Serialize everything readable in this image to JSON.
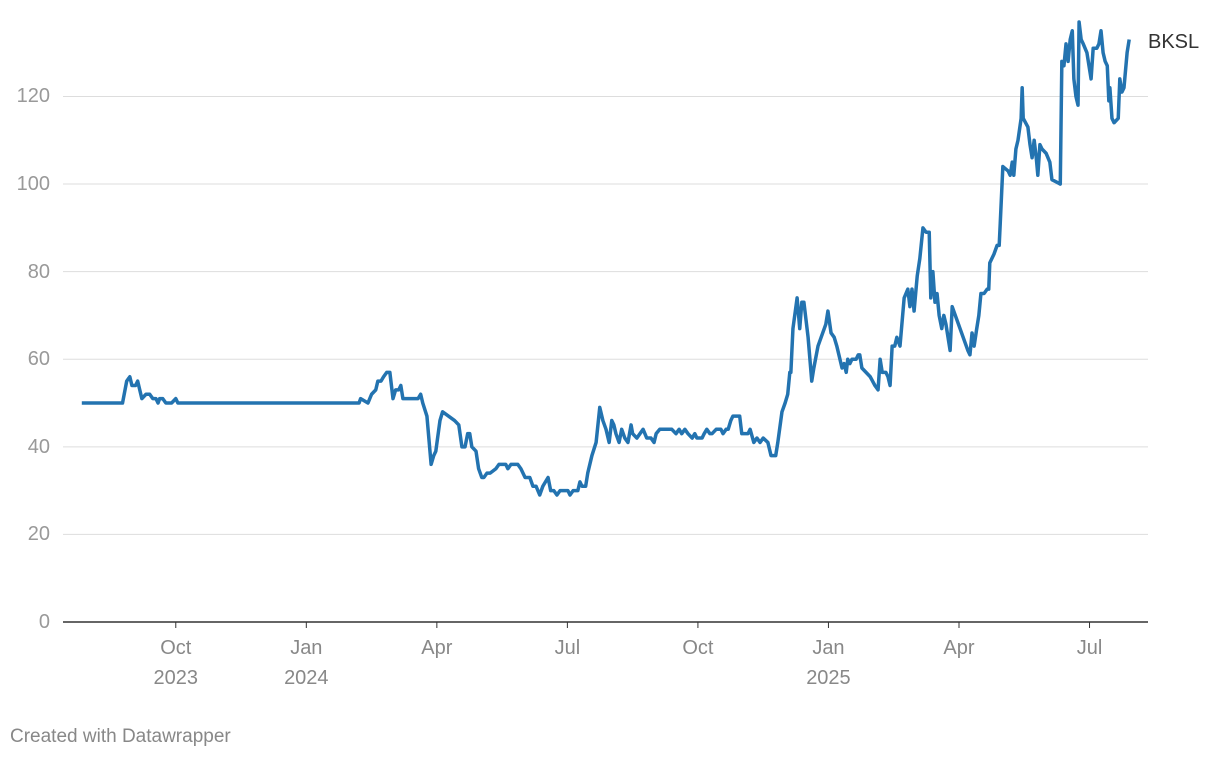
{
  "chart_data": {
    "type": "line",
    "x": [
      2023.57,
      2023.648,
      2023.656,
      2023.662,
      2023.666,
      2023.673,
      2023.677,
      2023.685,
      2023.693,
      2023.7,
      2023.706,
      2023.712,
      2023.716,
      2023.719,
      2023.725,
      2023.731,
      2023.742,
      2023.75,
      2023.754,
      2024.101,
      2024.104,
      2024.118,
      2024.125,
      2024.133,
      2024.137,
      2024.143,
      2024.148,
      2024.154,
      2024.16,
      2024.166,
      2024.171,
      2024.177,
      2024.181,
      2024.185,
      2024.214,
      2024.219,
      2024.223,
      2024.231,
      2024.239,
      2024.244,
      2024.248,
      2024.256,
      2024.261,
      2024.284,
      2024.292,
      2024.298,
      2024.304,
      2024.309,
      2024.313,
      2024.317,
      2024.325,
      2024.33,
      2024.336,
      2024.34,
      2024.346,
      2024.352,
      2024.363,
      2024.369,
      2024.382,
      2024.386,
      2024.392,
      2024.405,
      2024.411,
      2024.419,
      2024.428,
      2024.434,
      2024.44,
      2024.447,
      2024.453,
      2024.463,
      2024.468,
      2024.474,
      2024.48,
      2024.486,
      2024.501,
      2024.505,
      2024.511,
      2024.52,
      2024.524,
      2024.528,
      2024.535,
      2024.539,
      2024.547,
      2024.555,
      2024.562,
      2024.568,
      2024.574,
      2024.58,
      2024.585,
      2024.589,
      2024.593,
      2024.599,
      2024.604,
      2024.61,
      2024.616,
      2024.622,
      2024.625,
      2024.633,
      2024.639,
      2024.645,
      2024.652,
      2024.66,
      2024.666,
      2024.67,
      2024.677,
      2024.7,
      2024.708,
      2024.714,
      2024.719,
      2024.725,
      2024.731,
      2024.739,
      2024.744,
      2024.748,
      2024.758,
      2024.762,
      2024.767,
      2024.773,
      2024.777,
      2024.785,
      2024.794,
      2024.798,
      2024.804,
      2024.808,
      2024.813,
      2024.817,
      2024.83,
      2024.834,
      2024.846,
      2024.85,
      2024.857,
      2024.863,
      2024.869,
      2024.875,
      2024.884,
      2024.89,
      2024.899,
      2024.903,
      2024.911,
      2024.917,
      2024.922,
      2024.926,
      2024.928,
      2024.932,
      2024.94,
      2024.945,
      2024.949,
      2024.953,
      2024.961,
      2024.968,
      2024.972,
      2024.98,
      2024.986,
      2024.989,
      2024.995,
      2024.999,
      2025.005,
      2025.011,
      2025.016,
      2025.026,
      2025.03,
      2025.034,
      2025.037,
      2025.041,
      2025.045,
      2025.053,
      2025.057,
      2025.06,
      2025.064,
      2025.072,
      2025.08,
      2025.089,
      2025.095,
      2025.099,
      2025.103,
      2025.11,
      2025.114,
      2025.118,
      2025.122,
      2025.127,
      2025.131,
      2025.137,
      2025.145,
      2025.152,
      2025.156,
      2025.16,
      2025.164,
      2025.17,
      2025.175,
      2025.181,
      2025.187,
      2025.193,
      2025.196,
      2025.2,
      2025.204,
      2025.208,
      2025.212,
      2025.217,
      2025.221,
      2025.225,
      2025.229,
      2025.233,
      2025.237,
      2025.267,
      2025.271,
      2025.275,
      2025.279,
      2025.284,
      2025.288,
      2025.292,
      2025.298,
      2025.304,
      2025.307,
      2025.309,
      2025.317,
      2025.323,
      2025.327,
      2025.329,
      2025.334,
      2025.344,
      2025.348,
      2025.352,
      2025.355,
      2025.359,
      2025.363,
      2025.369,
      2025.371,
      2025.373,
      2025.382,
      2025.386,
      2025.39,
      2025.394,
      2025.398,
      2025.401,
      2025.405,
      2025.409,
      2025.417,
      2025.424,
      2025.428,
      2025.436,
      2025.444,
      2025.447,
      2025.451,
      2025.455,
      2025.459,
      2025.463,
      2025.467,
      2025.47,
      2025.474,
      2025.478,
      2025.48,
      2025.484,
      2025.488,
      2025.495,
      2025.499,
      2025.503,
      2025.507,
      2025.514,
      2025.518,
      2025.522,
      2025.526,
      2025.53,
      2025.534,
      2025.537,
      2025.539,
      2025.543,
      2025.547,
      2025.555,
      2025.558,
      2025.562,
      2025.566,
      2025.572,
      2025.576
    ],
    "series": [
      {
        "name": "BKSL",
        "color": "#2373b0",
        "values": [
          50,
          50,
          55,
          56,
          54,
          54,
          55,
          51,
          52,
          52,
          51,
          51,
          50,
          51,
          51,
          50,
          50,
          51,
          50,
          50,
          51,
          50,
          52,
          53,
          55,
          55,
          56,
          57,
          57,
          51,
          53,
          53,
          54,
          51,
          51,
          52,
          50,
          47,
          36,
          38,
          39,
          46,
          48,
          46,
          45,
          40,
          40,
          43,
          43,
          40,
          39,
          35,
          33,
          33,
          34,
          34,
          35,
          36,
          36,
          35,
          36,
          36,
          35,
          33,
          33,
          31,
          31,
          29,
          31,
          33,
          30,
          30,
          29,
          30,
          30,
          29,
          30,
          30,
          32,
          31,
          31,
          34,
          38,
          41,
          49,
          46,
          44,
          41,
          46,
          45,
          43,
          41,
          44,
          42,
          41,
          45,
          43,
          42,
          43,
          44,
          42,
          42,
          41,
          43,
          44,
          44,
          43,
          44,
          43,
          44,
          43,
          42,
          43,
          42,
          42,
          43,
          44,
          43,
          43,
          44,
          44,
          43,
          44,
          44,
          46,
          47,
          47,
          43,
          43,
          44,
          41,
          42,
          41,
          42,
          41,
          38,
          38,
          41,
          48,
          50,
          52,
          57,
          57,
          67,
          74,
          67,
          73,
          73,
          65,
          55,
          58,
          63,
          65,
          66,
          68,
          71,
          66,
          65,
          63,
          58,
          59,
          57,
          60,
          59,
          60,
          60,
          61,
          61,
          58,
          57,
          56,
          54,
          53,
          60,
          57,
          57,
          56,
          54,
          63,
          63,
          65,
          63,
          74,
          76,
          72,
          76,
          71,
          79,
          83,
          90,
          89,
          89,
          74,
          80,
          73,
          75,
          70,
          67,
          70,
          68,
          65,
          62,
          72,
          62,
          61,
          66,
          63,
          67,
          70,
          75,
          75,
          76,
          76,
          82,
          84,
          86,
          86,
          91,
          104,
          103,
          102,
          105,
          102,
          108,
          110,
          115,
          122,
          115,
          113,
          109,
          106,
          110,
          106,
          102,
          109,
          108,
          107,
          105,
          101,
          100.5,
          100,
          128,
          127,
          132,
          128,
          133,
          135,
          124,
          120,
          118,
          137,
          133,
          132,
          130,
          127,
          124,
          131,
          131,
          132,
          135,
          130,
          128,
          127,
          119,
          122,
          115,
          114,
          115,
          124,
          121,
          122,
          130,
          133
        ]
      }
    ],
    "xlim": [
      2023.534,
      2025.612
    ],
    "xticks": [
      {
        "value": 2023.75,
        "label": "Oct\n2023"
      },
      {
        "value": 2024,
        "label": "Jan\n2024"
      },
      {
        "value": 2024.25,
        "label": "Apr"
      },
      {
        "value": 2024.5,
        "label": "Jul"
      },
      {
        "value": 2024.75,
        "label": "Oct"
      },
      {
        "value": 2025,
        "label": "Jan\n2025"
      },
      {
        "value": 2025.25,
        "label": "Apr"
      },
      {
        "value": 2025.5,
        "label": "Jul"
      }
    ],
    "ylim": [
      0,
      137
    ],
    "yticks": [
      0,
      20,
      40,
      60,
      80,
      100,
      120
    ],
    "grid": true,
    "credit": "Created with Datawrapper"
  }
}
